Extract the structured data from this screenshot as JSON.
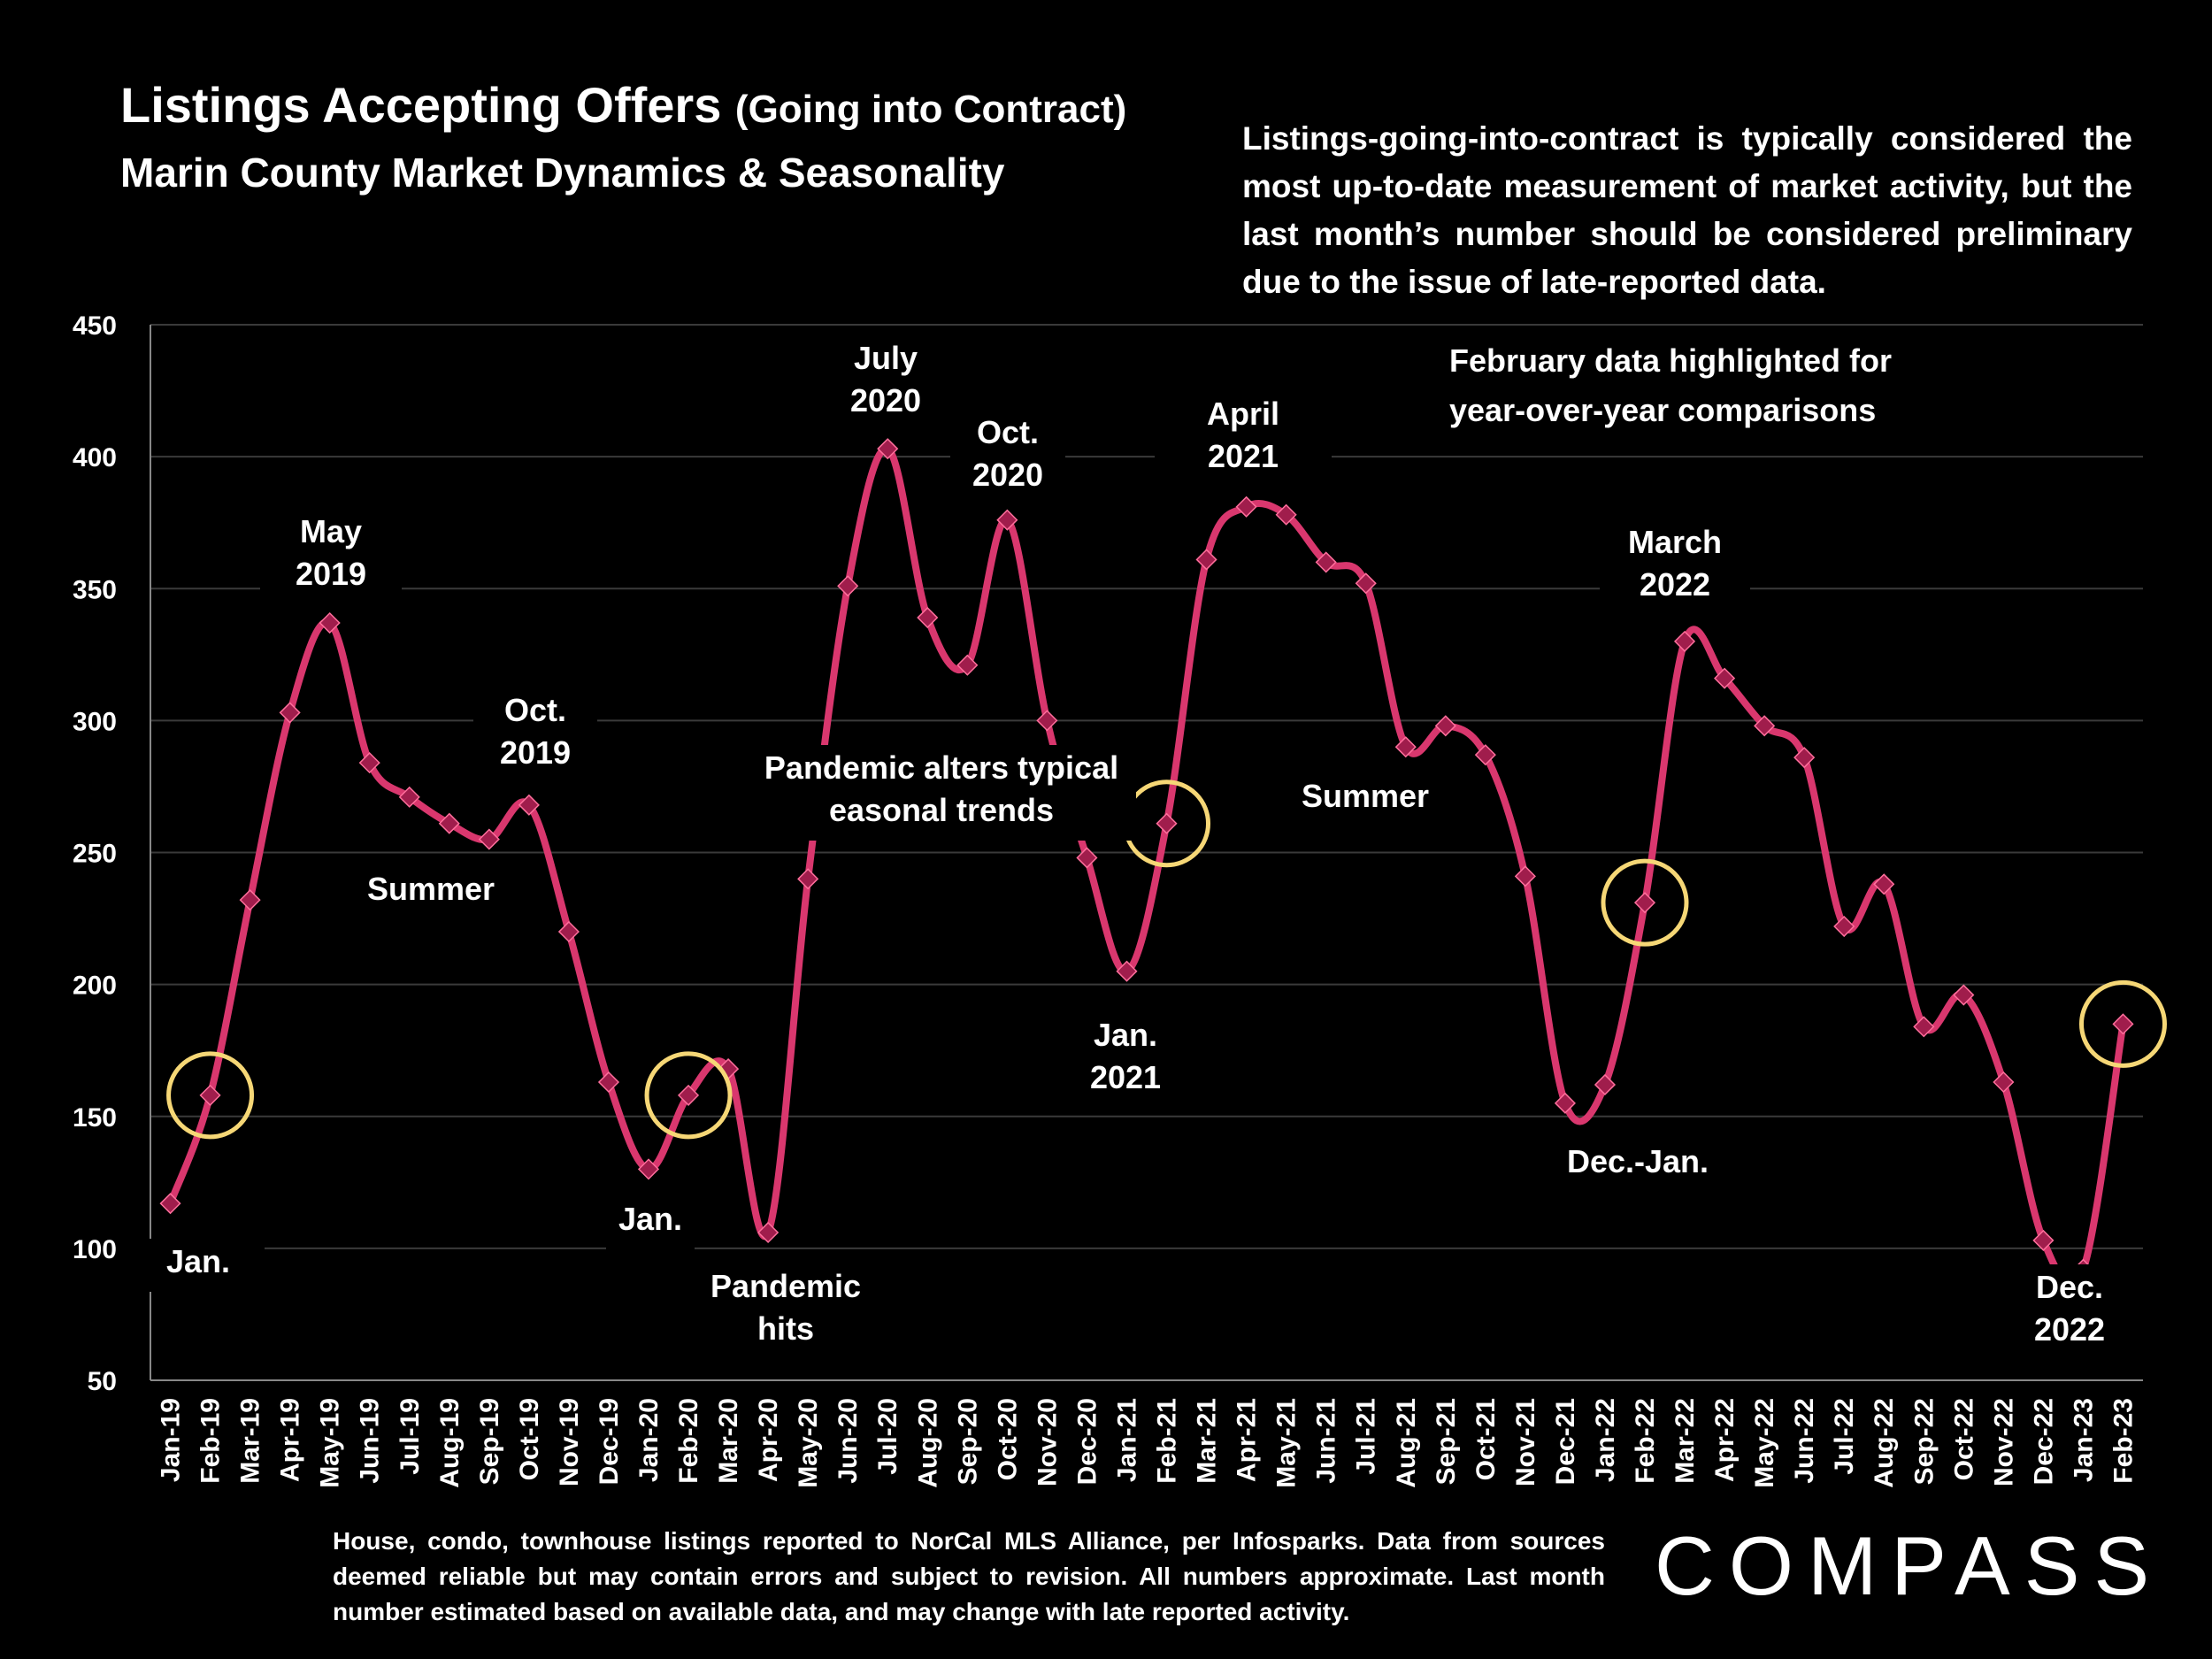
{
  "title": {
    "main": "Listings Accepting Offers",
    "paren": "(Going into Contract)",
    "subtitle": "Marin County Market Dynamics & Seasonality"
  },
  "note": "Listings-going-into-contract is typically considered the most up-to-date measurement of market activity, but the last month’s number should be considered preliminary due to the issue of late-reported data.",
  "footnote": "House, condo, townhouse listings reported to NorCal MLS Alliance, per Infosparks. Data from sources deemed reliable but may contain errors and subject to revision. All numbers approximate. Last month number estimated based on available data, and may change with late reported activity.",
  "brand": "COMPASS",
  "colors": {
    "line": "#d9376e",
    "marker": "#a01d4c",
    "highlight": "#f6d776",
    "grid": "#3a3a3a"
  },
  "chart_data": {
    "type": "line",
    "title": "Listings Accepting Offers (Going into Contract)",
    "xlabel": "",
    "ylabel": "",
    "ylim": [
      50,
      450
    ],
    "yticks": [
      50,
      100,
      150,
      200,
      250,
      300,
      350,
      400,
      450
    ],
    "grid": true,
    "categories": [
      "Jan-19",
      "Feb-19",
      "Mar-19",
      "Apr-19",
      "May-19",
      "Jun-19",
      "Jul-19",
      "Aug-19",
      "Sep-19",
      "Oct-19",
      "Nov-19",
      "Dec-19",
      "Jan-20",
      "Feb-20",
      "Mar-20",
      "Apr-20",
      "May-20",
      "Jun-20",
      "Jul-20",
      "Aug-20",
      "Sep-20",
      "Oct-20",
      "Nov-20",
      "Dec-20",
      "Jan-21",
      "Feb-21",
      "Mar-21",
      "Apr-21",
      "May-21",
      "Jun-21",
      "Jul-21",
      "Aug-21",
      "Sep-21",
      "Oct-21",
      "Nov-21",
      "Dec-21",
      "Jan-22",
      "Feb-22",
      "Mar-22",
      "Apr-22",
      "May-22",
      "Jun-22",
      "Jul-22",
      "Aug-22",
      "Sep-22",
      "Oct-22",
      "Nov-22",
      "Dec-22",
      "Jan-23",
      "Feb-23"
    ],
    "values": [
      117,
      158,
      232,
      303,
      337,
      284,
      271,
      261,
      255,
      268,
      220,
      163,
      130,
      158,
      168,
      106,
      240,
      351,
      403,
      339,
      321,
      376,
      300,
      248,
      205,
      261,
      361,
      381,
      378,
      360,
      352,
      290,
      298,
      287,
      241,
      155,
      162,
      231,
      330,
      316,
      298,
      286,
      222,
      238,
      184,
      196,
      163,
      103,
      92,
      185
    ],
    "highlight_categories": [
      "Feb-19",
      "Feb-20",
      "Feb-21",
      "Feb-22",
      "Feb-23"
    ],
    "highlight_label": "February data highlighted for year-over-year comparisons",
    "annotations": [
      "Jan.",
      "May 2019",
      "Summer",
      "Oct. 2019",
      "Jan.",
      "Pandemic hits",
      "July 2020",
      "Oct. 2020",
      "Pandemic alters typical seasonal trends",
      "Jan. 2021",
      "April 2021",
      "Summer",
      "March 2022",
      "Dec.-Jan.",
      "Dec. 2022"
    ]
  }
}
